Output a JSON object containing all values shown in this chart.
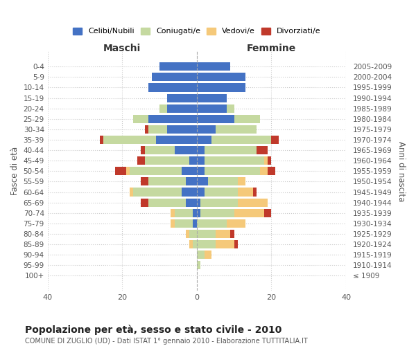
{
  "age_groups": [
    "100+",
    "95-99",
    "90-94",
    "85-89",
    "80-84",
    "75-79",
    "70-74",
    "65-69",
    "60-64",
    "55-59",
    "50-54",
    "45-49",
    "40-44",
    "35-39",
    "30-34",
    "25-29",
    "20-24",
    "15-19",
    "10-14",
    "5-9",
    "0-4"
  ],
  "birth_years": [
    "≤ 1909",
    "1910-1914",
    "1915-1919",
    "1920-1924",
    "1925-1929",
    "1930-1934",
    "1935-1939",
    "1940-1944",
    "1945-1949",
    "1950-1954",
    "1955-1959",
    "1960-1964",
    "1965-1969",
    "1970-1974",
    "1975-1979",
    "1980-1984",
    "1985-1989",
    "1990-1994",
    "1995-1999",
    "2000-2004",
    "2005-2009"
  ],
  "colors": {
    "celibi": "#4472C4",
    "coniugati": "#C5D9A0",
    "vedovi": "#F5C97A",
    "divorziati": "#C0392B"
  },
  "male": {
    "celibi": [
      0,
      0,
      0,
      0,
      0,
      1,
      1,
      3,
      4,
      3,
      4,
      2,
      6,
      11,
      8,
      13,
      8,
      8,
      13,
      12,
      10
    ],
    "coniugati": [
      0,
      0,
      0,
      1,
      2,
      5,
      5,
      10,
      13,
      10,
      14,
      12,
      8,
      14,
      5,
      4,
      2,
      0,
      0,
      0,
      0
    ],
    "vedovi": [
      0,
      0,
      0,
      1,
      1,
      1,
      1,
      0,
      1,
      0,
      1,
      0,
      0,
      0,
      0,
      0,
      0,
      0,
      0,
      0,
      0
    ],
    "divorziati": [
      0,
      0,
      0,
      0,
      0,
      0,
      0,
      2,
      0,
      2,
      3,
      2,
      1,
      1,
      1,
      0,
      0,
      0,
      0,
      0,
      0
    ]
  },
  "female": {
    "nubili": [
      0,
      0,
      0,
      0,
      0,
      0,
      1,
      1,
      2,
      3,
      2,
      2,
      2,
      4,
      5,
      10,
      8,
      8,
      13,
      13,
      9
    ],
    "coniugati": [
      0,
      1,
      2,
      5,
      5,
      8,
      9,
      10,
      9,
      8,
      15,
      16,
      14,
      16,
      11,
      7,
      2,
      0,
      0,
      0,
      0
    ],
    "vedovi": [
      0,
      0,
      2,
      5,
      4,
      5,
      8,
      8,
      4,
      2,
      2,
      1,
      0,
      0,
      0,
      0,
      0,
      0,
      0,
      0,
      0
    ],
    "divorziati": [
      0,
      0,
      0,
      1,
      1,
      0,
      2,
      0,
      1,
      0,
      2,
      1,
      3,
      2,
      0,
      0,
      0,
      0,
      0,
      0,
      0
    ]
  },
  "xlim": 40,
  "title": "Popolazione per età, sesso e stato civile - 2010",
  "subtitle": "COMUNE DI ZUGLIO (UD) - Dati ISTAT 1° gennaio 2010 - Elaborazione TUTTITALIA.IT",
  "xlabel_left": "Maschi",
  "xlabel_right": "Femmine",
  "ylabel_left": "Fasce di età",
  "ylabel_right": "Anni di nascita",
  "legend_labels": [
    "Celibi/Nubili",
    "Coniugati/e",
    "Vedovi/e",
    "Divorziati/e"
  ]
}
